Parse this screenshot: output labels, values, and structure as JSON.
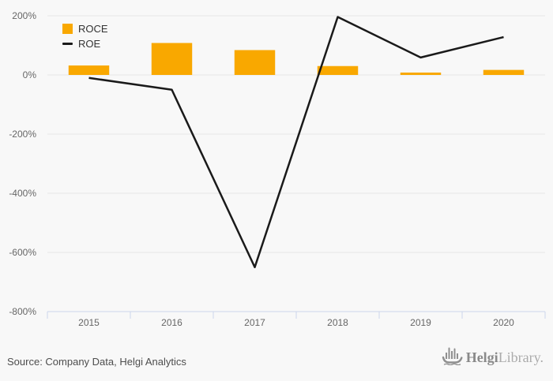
{
  "chart_data": {
    "type": "bar",
    "title": "",
    "xlabel": "",
    "ylabel": "",
    "categories": [
      "2015",
      "2016",
      "2017",
      "2018",
      "2019",
      "2020"
    ],
    "series": [
      {
        "name": "ROCE",
        "type": "bar",
        "color": "#F9A800",
        "values": [
          32,
          108,
          84,
          30,
          8,
          17
        ]
      },
      {
        "name": "ROE",
        "type": "line",
        "color": "#1A1A1A",
        "values": [
          -10,
          -50,
          -650,
          196,
          59,
          128
        ]
      }
    ],
    "ylim": [
      -800,
      200
    ],
    "y_ticks": [
      200,
      0,
      -200,
      -400,
      -600,
      -800
    ],
    "y_tick_suffix": "%",
    "grid": true,
    "legend_position": "top-left"
  },
  "footer": {
    "source": "Source: Company Data, Helgi Analytics",
    "logo": {
      "bold": "Helgi",
      "light": "Library."
    }
  },
  "colors": {
    "background": "#F8F8F8",
    "bar": "#F9A800",
    "line": "#1A1A1A",
    "gridline": "#E6E6E6",
    "axis": "#CCD6EB",
    "tick_label": "#666666",
    "legend_text": "#333333",
    "source_text": "#4D4D4D",
    "logo_gray": "#8A8A8A",
    "logo_light_gray": "#ABABAB"
  }
}
